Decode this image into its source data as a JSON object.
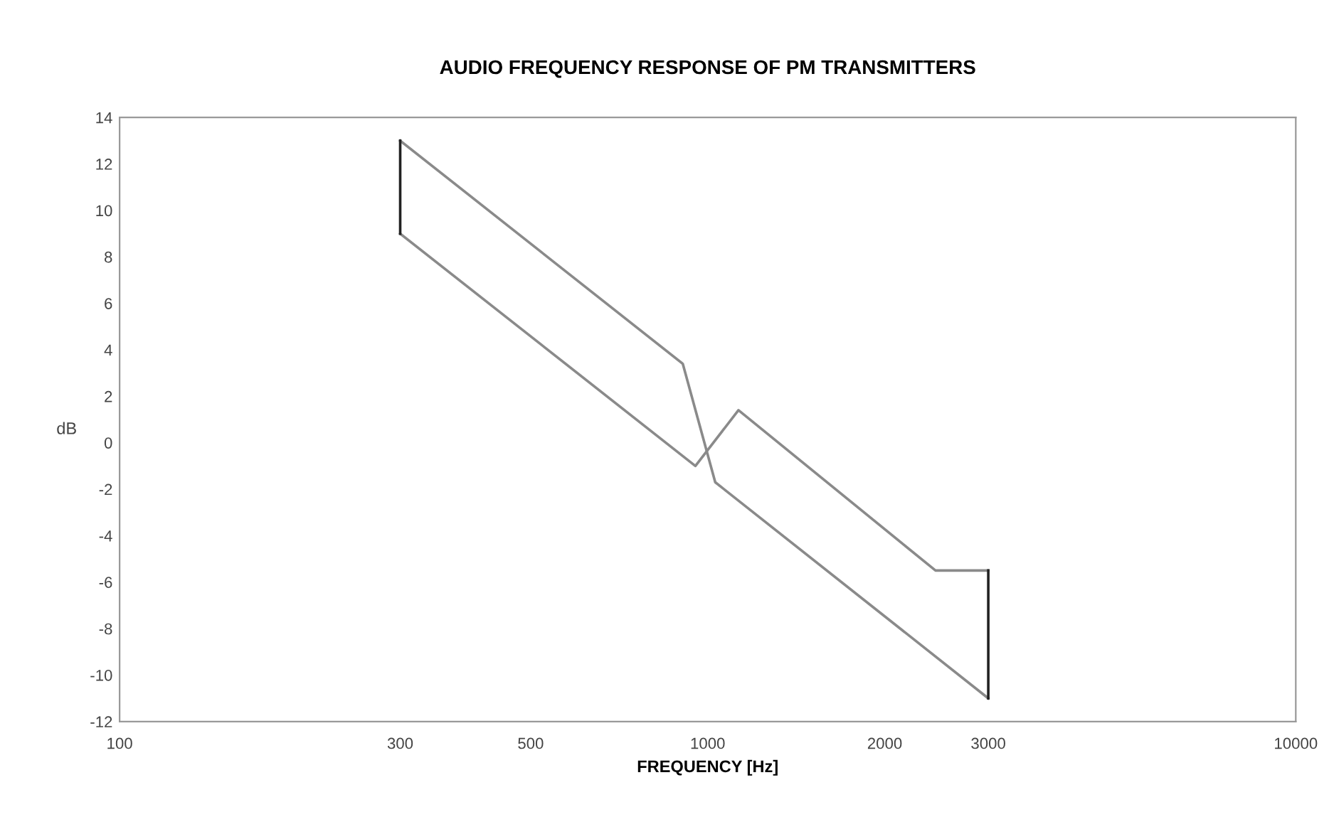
{
  "chart_data": {
    "type": "line",
    "title": "AUDIO FREQUENCY RESPONSE OF PM TRANSMITTERS",
    "xlabel": "FREQUENCY [Hz]",
    "ylabel": "dB",
    "log": "x",
    "xlim": [
      100,
      10000
    ],
    "ylim": [
      -12,
      14
    ],
    "xticks": [
      100,
      300,
      500,
      1000,
      2000,
      3000,
      10000
    ],
    "yticks": [
      -12,
      -10,
      -8,
      -6,
      -4,
      -2,
      0,
      2,
      4,
      6,
      8,
      10,
      12,
      14
    ],
    "grid": false,
    "marker": "none",
    "line_style": "solid",
    "series": [
      {
        "color": "#8a8a8a",
        "x": [
          300,
          907,
          1030,
          3000
        ],
        "values": [
          13,
          3.4,
          -1.7,
          -11
        ]
      },
      {
        "color": "#8a8a8a",
        "x": [
          300,
          953,
          1128,
          2440,
          3000
        ],
        "values": [
          9,
          -1,
          1.4,
          -5.5,
          -5.5
        ]
      },
      {
        "color": "#222222",
        "x": [
          300,
          300
        ],
        "values": [
          9,
          13
        ]
      },
      {
        "color": "#222222",
        "x": [
          3000,
          3000
        ],
        "values": [
          -11,
          -5.5
        ]
      }
    ]
  }
}
